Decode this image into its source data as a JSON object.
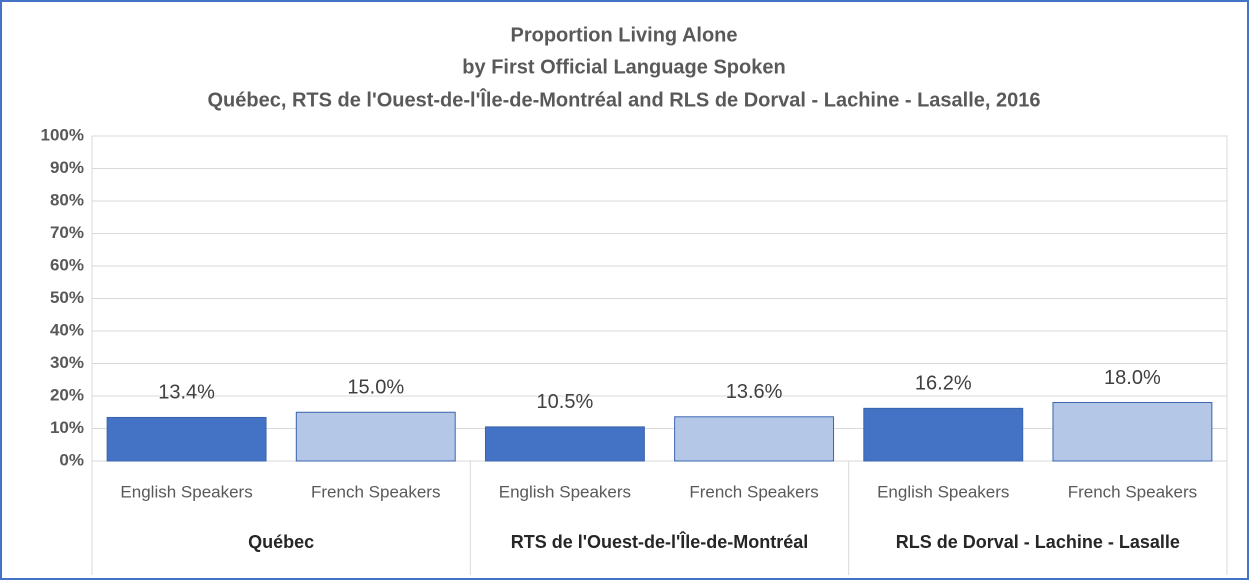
{
  "chart_data": {
    "type": "bar",
    "title": [
      "Proportion  Living Alone",
      "by First Official Language Spoken",
      "Québec, RTS de l'Ouest-de-l'Île-de-Montréal and RLS de Dorval - Lachine - Lasalle, 2016"
    ],
    "categories": [
      "Québec",
      "RTS de l'Ouest-de-l'Île-de-Montréal",
      "RLS de Dorval - Lachine - Lasalle"
    ],
    "series": [
      {
        "name": "English Speakers",
        "color": "#4472c4",
        "values": [
          13.4,
          10.5,
          16.2
        ],
        "value_labels": [
          "13.4%",
          "10.5%",
          "16.2%"
        ]
      },
      {
        "name": "French Speakers",
        "color": "#b4c7e7",
        "values": [
          15.0,
          13.6,
          18.0
        ],
        "value_labels": [
          "15.0%",
          "13.6%",
          "18.0%"
        ]
      }
    ],
    "ylim": [
      0,
      100
    ],
    "yticks": [
      {
        "value": 0,
        "label": "0%"
      },
      {
        "value": 10,
        "label": "10%"
      },
      {
        "value": 20,
        "label": "20%"
      },
      {
        "value": 30,
        "label": "30%"
      },
      {
        "value": 40,
        "label": "40%"
      },
      {
        "value": 50,
        "label": "50%"
      },
      {
        "value": 60,
        "label": "60%"
      },
      {
        "value": 70,
        "label": "70%"
      },
      {
        "value": 80,
        "label": "80%"
      },
      {
        "value": 90,
        "label": "90%"
      },
      {
        "value": 100,
        "label": "100%"
      }
    ],
    "grid": true
  }
}
